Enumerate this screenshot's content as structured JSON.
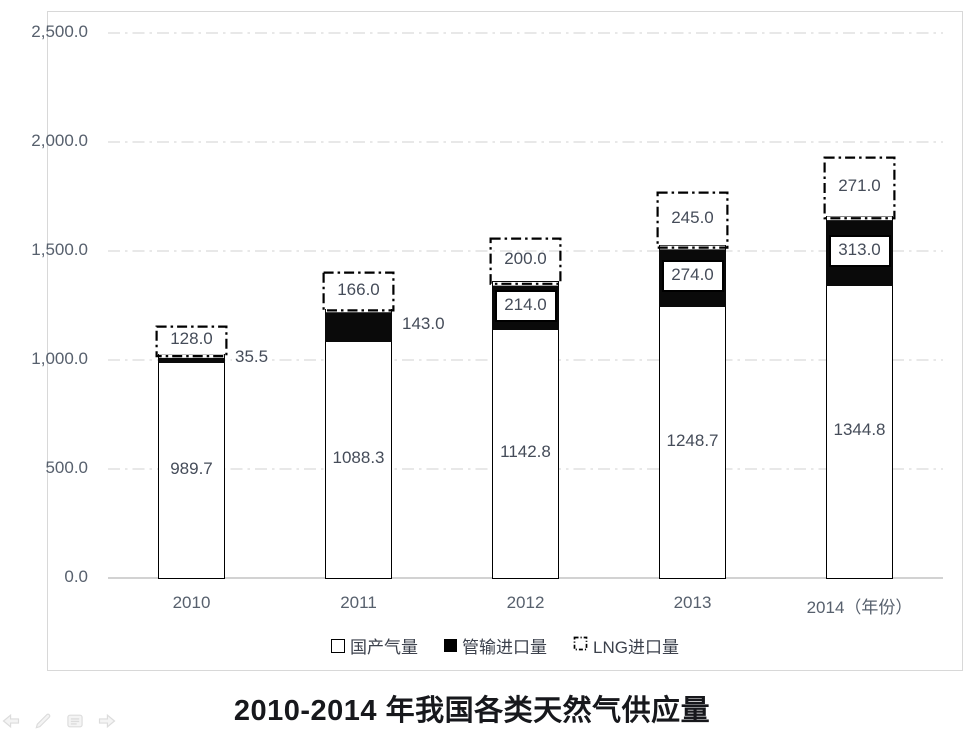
{
  "chart_data": {
    "type": "bar",
    "stacked": true,
    "title": "2010-2014 年我国各类天然气供应量",
    "categories": [
      "2010",
      "2011",
      "2012",
      "2013",
      "2014"
    ],
    "x_axis_suffix": "（年份）",
    "series": [
      {
        "name": "国产气量",
        "swatch": "white-square",
        "values": [
          989.7,
          1088.3,
          1142.8,
          1248.7,
          1344.8
        ],
        "label_style": [
          "inside",
          "inside",
          "inside",
          "inside",
          "inside"
        ]
      },
      {
        "name": "管输进口量",
        "swatch": "black-square",
        "values": [
          35.5,
          143.0,
          214.0,
          274.0,
          313.0
        ],
        "label_style": [
          "outside-right",
          "outside-right",
          "boxed",
          "boxed",
          "boxed"
        ]
      },
      {
        "name": "LNG进口量",
        "swatch": "dash-dot-square",
        "values": [
          128.0,
          166.0,
          200.0,
          245.0,
          271.0
        ],
        "label_style": [
          "inside-dash-box",
          "inside-dash-box",
          "inside-dash-box",
          "inside-dash-box",
          "inside-dash-box"
        ]
      }
    ],
    "ylim": [
      0,
      2500
    ],
    "ytick_labels": [
      "0.0",
      "500.0",
      "1,000.0",
      "1,500.0",
      "2,000.0",
      "2,500.0"
    ],
    "grid": "horizontal-dash-dot",
    "legend_position": "bottom"
  },
  "colors": {
    "gridline": "#d9d9d9",
    "baseline": "#c4c4c4",
    "frame_border": "#d8d8d8",
    "bar_border": "#000000",
    "pipeline_fill": "#0a0a0a",
    "domestic_fill": "#ffffff",
    "data_label": "#454c59",
    "axis_label": "#57606d",
    "legend_text": "#3c414c",
    "title_text": "#17181c",
    "nav_icon": "#dcdcdc"
  },
  "nav": {
    "icons": [
      "back-arrow",
      "pen",
      "menu",
      "forward-arrow"
    ]
  }
}
